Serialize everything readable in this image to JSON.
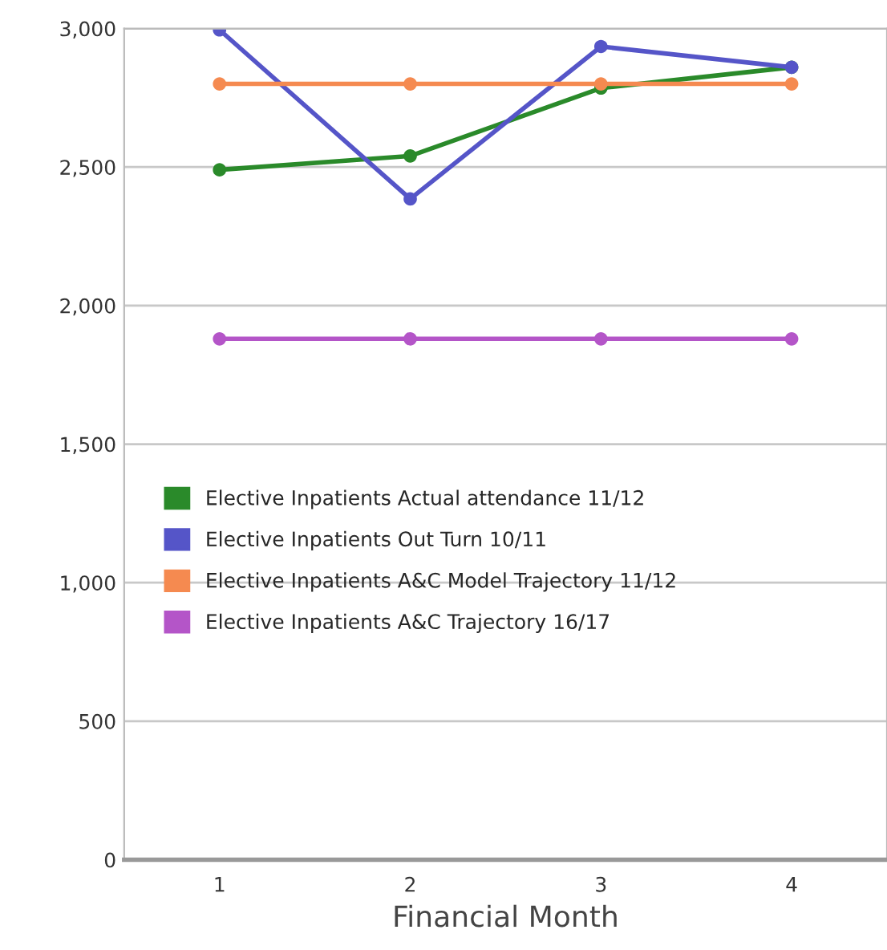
{
  "chart_data": {
    "type": "line",
    "xlabel": "Financial Month",
    "x": [
      1,
      2,
      3,
      4
    ],
    "xlim": [
      0.5,
      4.5
    ],
    "xticks": [
      1,
      2,
      3,
      4
    ],
    "ylim": [
      0,
      3000
    ],
    "yticks": [
      {
        "value": 0,
        "label": "0"
      },
      {
        "value": 500,
        "label": "500"
      },
      {
        "value": 1000,
        "label": "1,000"
      },
      {
        "value": 1500,
        "label": "1,500"
      },
      {
        "value": 2000,
        "label": "2,000"
      },
      {
        "value": 2500,
        "label": "2,500"
      },
      {
        "value": 3000,
        "label": "3,000"
      }
    ],
    "grid": "y",
    "legend": "left",
    "marker": "circle",
    "line_style": "solid",
    "series": [
      {
        "name": "Elective Inpatients Actual attendance 11/12",
        "color": "#2a8a2a",
        "values": [
          2490,
          2540,
          2785,
          2860
        ]
      },
      {
        "name": "Elective Inpatients Out Turn 10/11",
        "color": "#5555c8",
        "values": [
          2995,
          2385,
          2935,
          2860
        ]
      },
      {
        "name": "Elective Inpatients A&C Model Trajectory 11/12",
        "color": "#f58a50",
        "values": [
          2800,
          2800,
          2800,
          2800
        ]
      },
      {
        "name": "Elective Inpatients A&C Trajectory 16/17",
        "color": "#b455c8",
        "values": [
          1880,
          1880,
          1880,
          1880
        ]
      }
    ]
  }
}
